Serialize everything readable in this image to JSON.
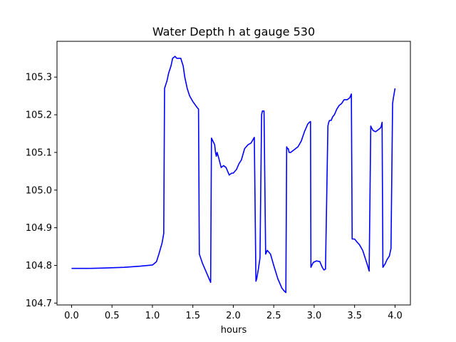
{
  "chart_data": {
    "type": "line",
    "title": "Water Depth h at gauge 530",
    "xlabel": "hours",
    "ylabel": "",
    "xlim": [
      -0.18,
      4.19
    ],
    "ylim": [
      104.695,
      105.395
    ],
    "xticks": [
      0.0,
      0.5,
      1.0,
      1.5,
      2.0,
      2.5,
      3.0,
      3.5,
      4.0
    ],
    "xtick_labels": [
      "0.0",
      "0.5",
      "1.0",
      "1.5",
      "2.0",
      "2.5",
      "3.0",
      "3.5",
      "4.0"
    ],
    "yticks": [
      104.7,
      104.8,
      104.9,
      105.0,
      105.1,
      105.2,
      105.3
    ],
    "ytick_labels": [
      "104.7",
      "104.8",
      "104.9",
      "105.0",
      "105.1",
      "105.2",
      "105.3"
    ],
    "grid": false,
    "series": [
      {
        "color": "#0000ff",
        "x": [
          0.0,
          0.2,
          0.4,
          0.65,
          0.85,
          1.0,
          1.05,
          1.08,
          1.12,
          1.14,
          1.15,
          1.18,
          1.2,
          1.23,
          1.25,
          1.28,
          1.3,
          1.35,
          1.38,
          1.4,
          1.43,
          1.46,
          1.5,
          1.55,
          1.57,
          1.58,
          1.62,
          1.67,
          1.72,
          1.73,
          1.76,
          1.77,
          1.78,
          1.79,
          1.8,
          1.82,
          1.85,
          1.88,
          1.91,
          1.95,
          1.98,
          2.0,
          2.02,
          2.04,
          2.07,
          2.1,
          2.14,
          2.18,
          2.22,
          2.26,
          2.28,
          2.29,
          2.31,
          2.33,
          2.35,
          2.36,
          2.38,
          2.4,
          2.41,
          2.42,
          2.44,
          2.46,
          2.5,
          2.55,
          2.6,
          2.63,
          2.65,
          2.66,
          2.67,
          2.68,
          2.69,
          2.71,
          2.74,
          2.77,
          2.8,
          2.84,
          2.88,
          2.92,
          2.94,
          2.955,
          2.96,
          2.97,
          2.99,
          3.03,
          3.07,
          3.1,
          3.12,
          3.14,
          3.17,
          3.18,
          3.19,
          3.21,
          3.23,
          3.25,
          3.28,
          3.31,
          3.34,
          3.37,
          3.41,
          3.44,
          3.46,
          3.47,
          3.48,
          3.5,
          3.53,
          3.56,
          3.6,
          3.63,
          3.66,
          3.68,
          3.7,
          3.71,
          3.73,
          3.76,
          3.79,
          3.82,
          3.83,
          3.84,
          3.85,
          3.88,
          3.9,
          3.93,
          3.95,
          3.97,
          3.98,
          4.0
        ],
        "y": [
          104.792,
          104.792,
          104.793,
          104.795,
          104.798,
          104.801,
          104.81,
          104.83,
          104.86,
          104.885,
          105.27,
          105.29,
          105.31,
          105.33,
          105.35,
          105.355,
          105.35,
          105.35,
          105.33,
          105.3,
          105.27,
          105.25,
          105.235,
          105.22,
          105.215,
          104.83,
          104.805,
          104.78,
          104.755,
          105.138,
          105.125,
          105.12,
          105.1,
          105.09,
          105.1,
          105.085,
          105.06,
          105.065,
          105.06,
          105.04,
          105.045,
          105.045,
          105.05,
          105.055,
          105.07,
          105.08,
          105.11,
          105.12,
          105.125,
          105.14,
          104.758,
          104.765,
          104.79,
          104.82,
          105.2,
          105.21,
          105.21,
          104.83,
          104.835,
          104.84,
          104.835,
          104.83,
          104.8,
          104.765,
          104.74,
          104.732,
          104.728,
          105.115,
          105.11,
          105.11,
          105.1,
          105.1,
          105.105,
          105.11,
          105.115,
          105.13,
          105.155,
          105.175,
          105.18,
          105.182,
          104.795,
          104.8,
          104.808,
          104.812,
          104.81,
          104.795,
          104.788,
          104.79,
          105.17,
          105.18,
          105.185,
          105.185,
          105.195,
          105.2,
          105.215,
          105.225,
          105.23,
          105.24,
          105.24,
          105.245,
          105.255,
          104.87,
          104.87,
          104.87,
          104.862,
          104.855,
          104.84,
          104.82,
          104.8,
          104.785,
          105.17,
          105.165,
          105.158,
          105.155,
          105.16,
          105.165,
          105.17,
          105.18,
          104.795,
          104.805,
          104.815,
          104.825,
          104.845,
          105.23,
          105.245,
          105.27
        ]
      }
    ]
  }
}
